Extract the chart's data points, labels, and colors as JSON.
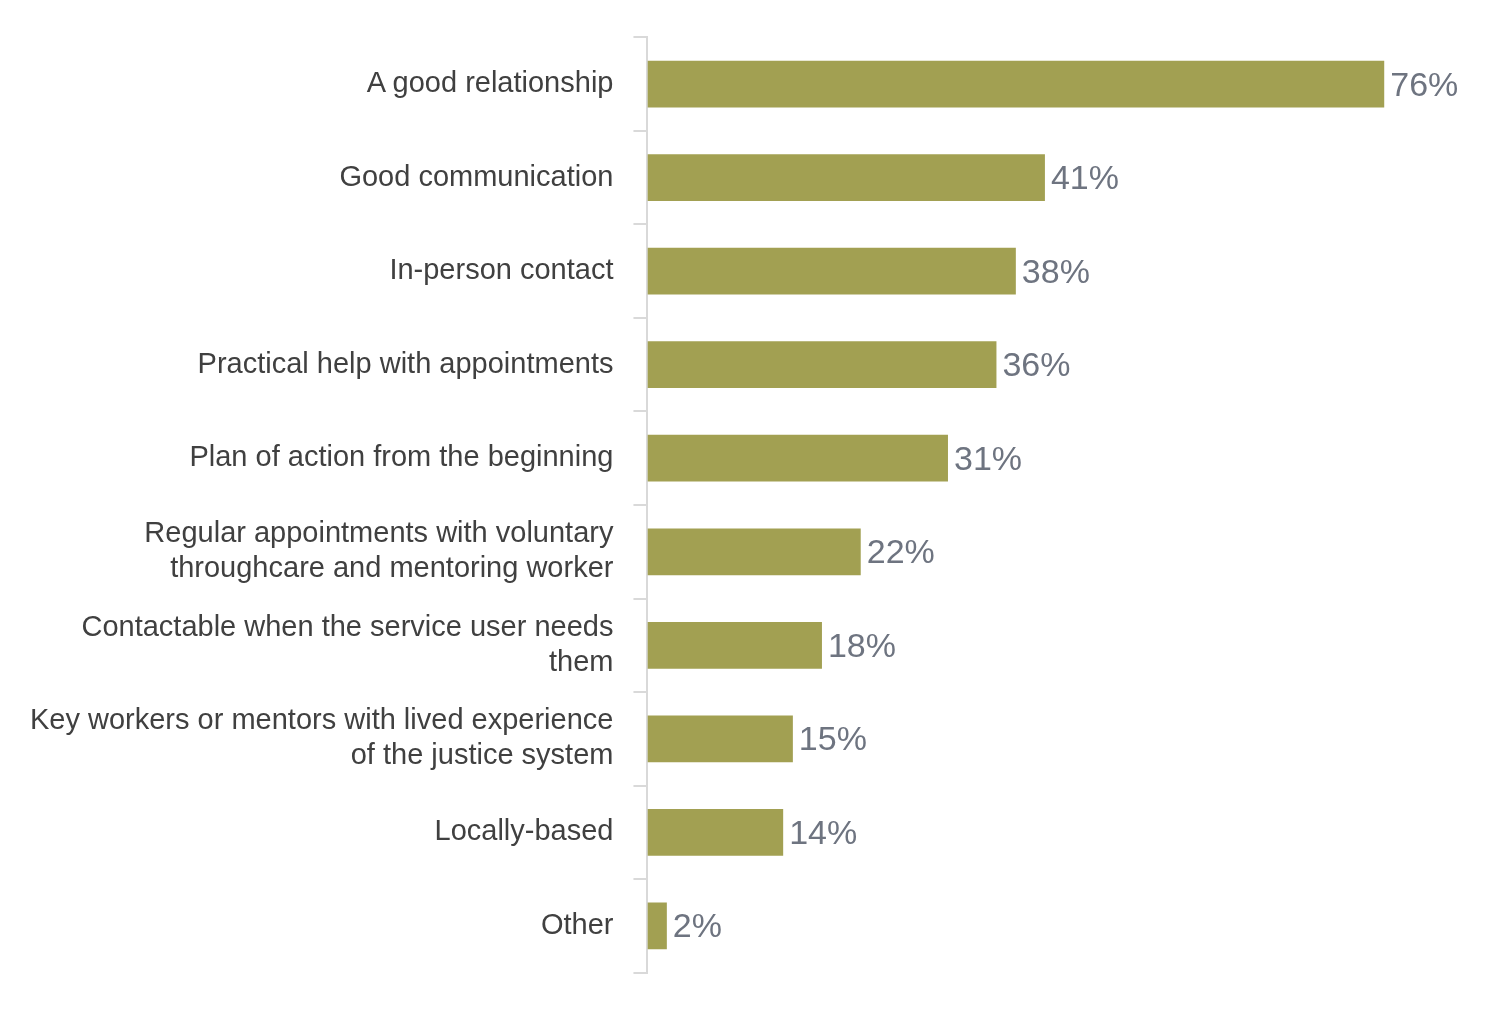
{
  "chart_data": {
    "type": "bar",
    "orientation": "horizontal",
    "categories": [
      "A good relationship",
      "Good communication",
      "In-person contact",
      "Practical help with appointments",
      "Plan of action from the beginning",
      "Regular appointments with voluntary throughcare and mentoring worker",
      "Contactable when the service user needs them",
      "Key workers or mentors with lived experience of the justice system",
      "Locally-based",
      "Other"
    ],
    "values": [
      76,
      41,
      38,
      36,
      31,
      22,
      18,
      15,
      14,
      2
    ],
    "value_labels": [
      "76%",
      "41%",
      "38%",
      "36%",
      "31%",
      "22%",
      "18%",
      "15%",
      "14%",
      "2%"
    ],
    "color": "#a2a052",
    "grid": false,
    "legend": false,
    "tick_labels": "y"
  }
}
